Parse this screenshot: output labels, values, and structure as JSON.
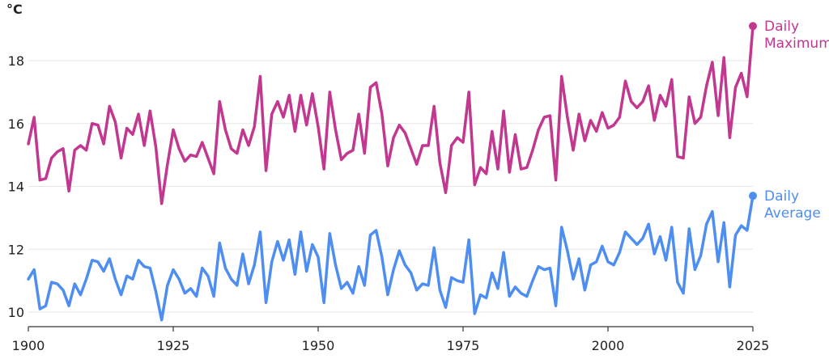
{
  "chart_data": {
    "type": "line",
    "ylabel": "°C",
    "xlabel": "",
    "xlim": [
      1900,
      2025
    ],
    "ylim": [
      9.8,
      19.4
    ],
    "xticks": [
      1900,
      1925,
      1950,
      1975,
      2000,
      2025
    ],
    "yticks": [
      10,
      12,
      14,
      16,
      18
    ],
    "grid": true,
    "legend": "end-of-line labels",
    "x_start": 1900,
    "series": [
      {
        "name": "Daily Maximum",
        "label_lines": [
          "Daily",
          "Maximum"
        ],
        "color": "#c2378f",
        "values": [
          15.35,
          16.2,
          14.2,
          14.25,
          14.9,
          15.1,
          15.2,
          13.85,
          15.15,
          15.3,
          15.15,
          16.0,
          15.95,
          15.35,
          16.55,
          16.05,
          14.9,
          15.85,
          15.65,
          16.3,
          15.3,
          16.4,
          15.25,
          13.45,
          14.7,
          15.8,
          15.2,
          14.8,
          15.0,
          14.95,
          15.4,
          14.9,
          14.4,
          16.7,
          15.8,
          15.2,
          15.05,
          15.8,
          15.3,
          15.9,
          17.5,
          14.5,
          16.3,
          16.7,
          16.2,
          16.9,
          15.75,
          16.9,
          15.95,
          16.95,
          15.9,
          14.55,
          17.0,
          15.8,
          14.85,
          15.05,
          15.15,
          16.3,
          15.05,
          17.15,
          17.3,
          16.3,
          14.65,
          15.55,
          15.95,
          15.7,
          15.2,
          14.7,
          15.3,
          15.3,
          16.55,
          14.75,
          13.8,
          15.3,
          15.55,
          15.4,
          17.0,
          14.05,
          14.6,
          14.4,
          15.75,
          14.55,
          16.4,
          14.45,
          15.65,
          14.55,
          14.6,
          15.15,
          15.8,
          16.2,
          16.25,
          14.2,
          17.5,
          16.2,
          15.15,
          16.3,
          15.45,
          16.1,
          15.75,
          16.35,
          15.85,
          15.95,
          16.2,
          17.35,
          16.7,
          16.5,
          16.7,
          17.2,
          16.1,
          16.9,
          16.55,
          17.4,
          14.95,
          14.9,
          16.85,
          16.0,
          16.2,
          17.2,
          17.95,
          16.25,
          18.1,
          15.55,
          17.15,
          17.6,
          16.85,
          19.1
        ]
      },
      {
        "name": "Daily Average",
        "label_lines": [
          "Daily",
          "Average"
        ],
        "color": "#4e8ef0",
        "values": [
          11.05,
          11.35,
          10.1,
          10.2,
          10.95,
          10.9,
          10.7,
          10.2,
          10.9,
          10.55,
          11.05,
          11.65,
          11.6,
          11.3,
          11.7,
          11.05,
          10.55,
          11.15,
          11.05,
          11.65,
          11.45,
          11.4,
          10.65,
          9.75,
          10.85,
          11.35,
          11.05,
          10.6,
          10.75,
          10.5,
          11.4,
          11.15,
          10.5,
          12.2,
          11.4,
          11.05,
          10.85,
          11.85,
          10.9,
          11.5,
          12.55,
          10.3,
          11.6,
          12.25,
          11.65,
          12.3,
          11.2,
          12.55,
          11.3,
          12.15,
          11.75,
          10.3,
          12.5,
          11.5,
          10.75,
          10.95,
          10.6,
          11.45,
          10.85,
          12.45,
          12.6,
          11.75,
          10.55,
          11.35,
          11.95,
          11.5,
          11.25,
          10.7,
          10.9,
          10.85,
          12.05,
          10.7,
          10.15,
          11.1,
          11.0,
          10.95,
          12.3,
          9.95,
          10.55,
          10.45,
          11.25,
          10.75,
          11.9,
          10.5,
          10.8,
          10.6,
          10.5,
          11.0,
          11.45,
          11.35,
          11.4,
          10.2,
          12.7,
          11.95,
          11.05,
          11.7,
          10.7,
          11.5,
          11.6,
          12.1,
          11.6,
          11.5,
          11.9,
          12.55,
          12.35,
          12.15,
          12.35,
          12.8,
          11.85,
          12.4,
          11.65,
          12.7,
          10.95,
          10.6,
          12.65,
          11.35,
          11.8,
          12.8,
          13.2,
          11.6,
          12.85,
          10.8,
          12.45,
          12.75,
          12.6,
          13.7
        ]
      }
    ]
  }
}
